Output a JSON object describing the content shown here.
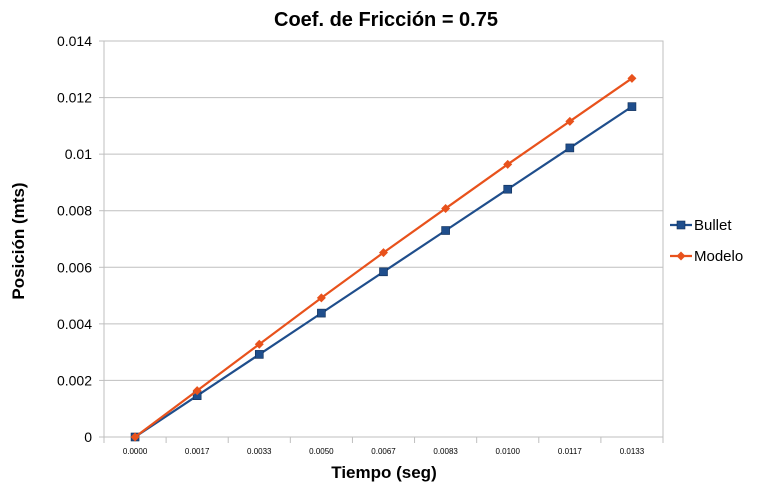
{
  "chart_data": {
    "type": "line",
    "title": "Coef. de Fricción = 0.75",
    "xlabel": "Tiempo (seg)",
    "ylabel": "Posición (mts)",
    "categories": [
      "0.0000",
      "0.0017",
      "0.0033",
      "0.0050",
      "0.0067",
      "0.0083",
      "0.0100",
      "0.0117",
      "0.0133"
    ],
    "yticks": [
      "0",
      "0.002",
      "0.004",
      "0.006",
      "0.008",
      "0.01",
      "0.012",
      "0.014"
    ],
    "ylim": [
      0,
      0.014
    ],
    "grid": true,
    "legend_position": "right",
    "series": [
      {
        "name": "Bullet",
        "color": "#1F4E8C",
        "marker": "square",
        "values": [
          0,
          0.00146,
          0.00292,
          0.00438,
          0.00584,
          0.0073,
          0.00876,
          0.01022,
          0.01168
        ]
      },
      {
        "name": "Modelo",
        "color": "#E8521C",
        "marker": "diamond",
        "values": [
          0,
          0.00164,
          0.00328,
          0.00492,
          0.00652,
          0.00808,
          0.00964,
          0.01116,
          0.01268
        ]
      }
    ]
  }
}
